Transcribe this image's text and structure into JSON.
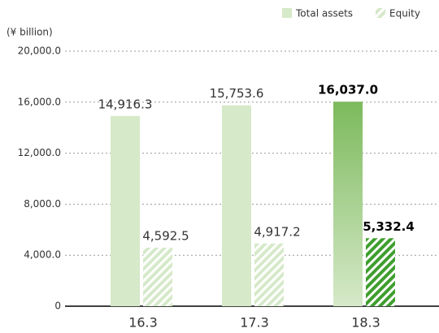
{
  "chart_data": {
    "type": "bar",
    "y_unit": "(¥ billion)",
    "categories": [
      "16.3",
      "17.3",
      "18.3"
    ],
    "series": [
      {
        "name": "Total assets",
        "color": "#d6e9c9",
        "pattern": "solid",
        "values": [
          14916.3,
          15753.6,
          16037.0
        ],
        "value_labels": [
          "14,916.3",
          "15,753.6",
          "16,037.0"
        ]
      },
      {
        "name": "Equity",
        "color": "#d6e9c9",
        "pattern": "hatch",
        "values": [
          4592.5,
          4917.2,
          5332.4
        ],
        "value_labels": [
          "4,592.5",
          "4,917.2",
          "5,332.4"
        ]
      }
    ],
    "highlight": {
      "index": 2,
      "colors": [
        "#7cba5c",
        "#3f9e2e"
      ]
    },
    "ylim": [
      0,
      20000
    ],
    "yticks": [
      0,
      {
        "value": 4000,
        "label": "4,000.0"
      },
      {
        "value": 8000,
        "label": "8,000.0"
      },
      {
        "value": 12000,
        "label": "12,000.0"
      },
      {
        "value": 16000,
        "label": "16,000.0"
      },
      {
        "value": 20000,
        "label": "20,000.0"
      }
    ],
    "grid": true,
    "legend": "top-right"
  }
}
